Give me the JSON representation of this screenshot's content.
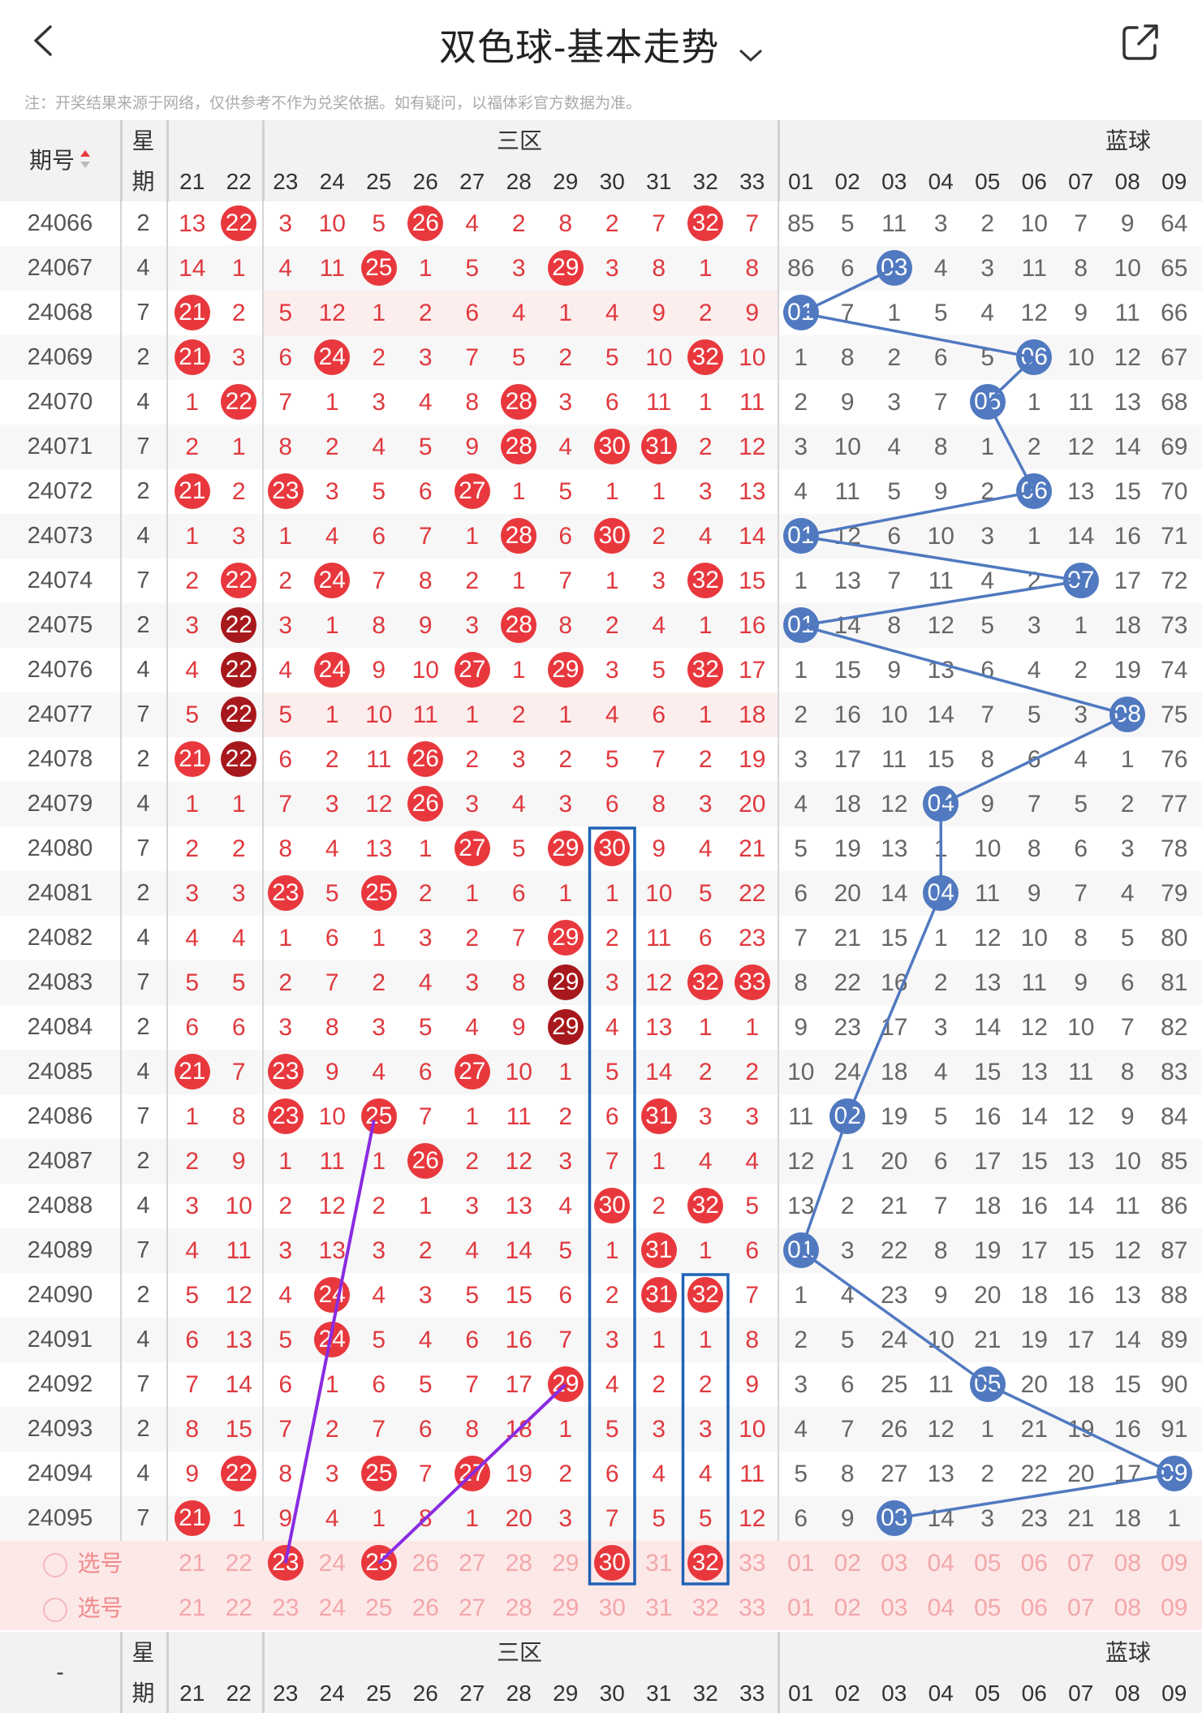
{
  "header": {
    "title": "双色球-基本走势",
    "note": "注：开奖结果来源于网络，仅供参考不作为兑奖依据。如有疑问，以福体彩官方数据为准。"
  },
  "columns": {
    "issue": "期号",
    "week_top": "星",
    "week_bottom": "期",
    "zone": "三区",
    "blue": "蓝球",
    "footer_issue": "-",
    "red_numbers": [
      "21",
      "22",
      "23",
      "24",
      "25",
      "26",
      "27",
      "28",
      "29",
      "30",
      "31",
      "32",
      "33"
    ],
    "blue_numbers": [
      "01",
      "02",
      "03",
      "04",
      "05",
      "06",
      "07",
      "08",
      "09"
    ]
  },
  "rows": [
    {
      "issue": "24066",
      "week": "2",
      "red": [
        "13",
        "22",
        "3",
        "10",
        "5",
        "26",
        "4",
        "2",
        "8",
        "2",
        "7",
        "32",
        "7"
      ],
      "blue": [
        "85",
        "5",
        "11",
        "3",
        "2",
        "10",
        "7",
        "9",
        "64"
      ]
    },
    {
      "issue": "24067",
      "week": "4",
      "red": [
        "14",
        "1",
        "4",
        "11",
        "25",
        "1",
        "5",
        "3",
        "29",
        "3",
        "8",
        "1",
        "8"
      ],
      "blue": [
        "86",
        "6",
        "03",
        "4",
        "3",
        "11",
        "8",
        "10",
        "65"
      ]
    },
    {
      "issue": "24068",
      "week": "7",
      "red": [
        "21",
        "2",
        "5",
        "12",
        "1",
        "2",
        "6",
        "4",
        "1",
        "4",
        "9",
        "2",
        "9"
      ],
      "blue": [
        "01",
        "7",
        "1",
        "5",
        "4",
        "12",
        "9",
        "11",
        "66"
      ]
    },
    {
      "issue": "24069",
      "week": "2",
      "red": [
        "21",
        "3",
        "6",
        "24",
        "2",
        "3",
        "7",
        "5",
        "2",
        "5",
        "10",
        "32",
        "10"
      ],
      "blue": [
        "1",
        "8",
        "2",
        "6",
        "5",
        "06",
        "10",
        "12",
        "67"
      ]
    },
    {
      "issue": "24070",
      "week": "4",
      "red": [
        "1",
        "22",
        "7",
        "1",
        "3",
        "4",
        "8",
        "28",
        "3",
        "6",
        "11",
        "1",
        "11"
      ],
      "blue": [
        "2",
        "9",
        "3",
        "7",
        "05",
        "1",
        "11",
        "13",
        "68"
      ]
    },
    {
      "issue": "24071",
      "week": "7",
      "red": [
        "2",
        "1",
        "8",
        "2",
        "4",
        "5",
        "9",
        "28",
        "4",
        "30",
        "31",
        "2",
        "12"
      ],
      "blue": [
        "3",
        "10",
        "4",
        "8",
        "1",
        "2",
        "12",
        "14",
        "69"
      ]
    },
    {
      "issue": "24072",
      "week": "2",
      "red": [
        "21",
        "2",
        "23",
        "3",
        "5",
        "6",
        "27",
        "1",
        "5",
        "1",
        "1",
        "3",
        "13"
      ],
      "blue": [
        "4",
        "11",
        "5",
        "9",
        "2",
        "06",
        "13",
        "15",
        "70"
      ]
    },
    {
      "issue": "24073",
      "week": "4",
      "red": [
        "1",
        "3",
        "1",
        "4",
        "6",
        "7",
        "1",
        "28",
        "6",
        "30",
        "2",
        "4",
        "14"
      ],
      "blue": [
        "01",
        "12",
        "6",
        "10",
        "3",
        "1",
        "14",
        "16",
        "71"
      ]
    },
    {
      "issue": "24074",
      "week": "7",
      "red": [
        "2",
        "22",
        "2",
        "24",
        "7",
        "8",
        "2",
        "1",
        "7",
        "1",
        "3",
        "32",
        "15"
      ],
      "blue": [
        "1",
        "13",
        "7",
        "11",
        "4",
        "2",
        "07",
        "17",
        "72"
      ]
    },
    {
      "issue": "24075",
      "week": "2",
      "red": [
        "3",
        "22",
        "3",
        "1",
        "8",
        "9",
        "3",
        "28",
        "8",
        "2",
        "4",
        "1",
        "16"
      ],
      "blue": [
        "01",
        "14",
        "8",
        "12",
        "5",
        "3",
        "1",
        "18",
        "73"
      ]
    },
    {
      "issue": "24076",
      "week": "4",
      "red": [
        "4",
        "22",
        "4",
        "24",
        "9",
        "10",
        "27",
        "1",
        "29",
        "3",
        "5",
        "32",
        "17"
      ],
      "blue": [
        "1",
        "15",
        "9",
        "13",
        "6",
        "4",
        "2",
        "19",
        "74"
      ]
    },
    {
      "issue": "24077",
      "week": "7",
      "red": [
        "5",
        "22",
        "5",
        "1",
        "10",
        "11",
        "1",
        "2",
        "1",
        "4",
        "6",
        "1",
        "18"
      ],
      "blue": [
        "2",
        "16",
        "10",
        "14",
        "7",
        "5",
        "3",
        "08",
        "75"
      ]
    },
    {
      "issue": "24078",
      "week": "2",
      "red": [
        "21",
        "22",
        "6",
        "2",
        "11",
        "26",
        "2",
        "3",
        "2",
        "5",
        "7",
        "2",
        "19"
      ],
      "blue": [
        "3",
        "17",
        "11",
        "15",
        "8",
        "6",
        "4",
        "1",
        "76"
      ]
    },
    {
      "issue": "24079",
      "week": "4",
      "red": [
        "1",
        "1",
        "7",
        "3",
        "12",
        "26",
        "3",
        "4",
        "3",
        "6",
        "8",
        "3",
        "20"
      ],
      "blue": [
        "4",
        "18",
        "12",
        "04",
        "9",
        "7",
        "5",
        "2",
        "77"
      ]
    },
    {
      "issue": "24080",
      "week": "7",
      "red": [
        "2",
        "2",
        "8",
        "4",
        "13",
        "1",
        "27",
        "5",
        "29",
        "30",
        "9",
        "4",
        "21"
      ],
      "blue": [
        "5",
        "19",
        "13",
        "1",
        "10",
        "8",
        "6",
        "3",
        "78"
      ]
    },
    {
      "issue": "24081",
      "week": "2",
      "red": [
        "3",
        "3",
        "23",
        "5",
        "25",
        "2",
        "1",
        "6",
        "1",
        "1",
        "10",
        "5",
        "22"
      ],
      "blue": [
        "6",
        "20",
        "14",
        "04",
        "11",
        "9",
        "7",
        "4",
        "79"
      ]
    },
    {
      "issue": "24082",
      "week": "4",
      "red": [
        "4",
        "4",
        "1",
        "6",
        "1",
        "3",
        "2",
        "7",
        "29",
        "2",
        "11",
        "6",
        "23"
      ],
      "blue": [
        "7",
        "21",
        "15",
        "1",
        "12",
        "10",
        "8",
        "5",
        "80"
      ]
    },
    {
      "issue": "24083",
      "week": "7",
      "red": [
        "5",
        "5",
        "2",
        "7",
        "2",
        "4",
        "3",
        "8",
        "29",
        "3",
        "12",
        "32",
        "33"
      ],
      "blue": [
        "8",
        "22",
        "16",
        "2",
        "13",
        "11",
        "9",
        "6",
        "81"
      ]
    },
    {
      "issue": "24084",
      "week": "2",
      "red": [
        "6",
        "6",
        "3",
        "8",
        "3",
        "5",
        "4",
        "9",
        "29",
        "4",
        "13",
        "1",
        "1"
      ],
      "blue": [
        "9",
        "23",
        "17",
        "3",
        "14",
        "12",
        "10",
        "7",
        "82"
      ]
    },
    {
      "issue": "24085",
      "week": "4",
      "red": [
        "21",
        "7",
        "23",
        "9",
        "4",
        "6",
        "27",
        "10",
        "1",
        "5",
        "14",
        "2",
        "2"
      ],
      "blue": [
        "10",
        "24",
        "18",
        "4",
        "15",
        "13",
        "11",
        "8",
        "83"
      ]
    },
    {
      "issue": "24086",
      "week": "7",
      "red": [
        "1",
        "8",
        "23",
        "10",
        "25",
        "7",
        "1",
        "11",
        "2",
        "6",
        "31",
        "3",
        "3"
      ],
      "blue": [
        "11",
        "02",
        "19",
        "5",
        "16",
        "14",
        "12",
        "9",
        "84"
      ]
    },
    {
      "issue": "24087",
      "week": "2",
      "red": [
        "2",
        "9",
        "1",
        "11",
        "1",
        "26",
        "2",
        "12",
        "3",
        "7",
        "1",
        "4",
        "4"
      ],
      "blue": [
        "12",
        "1",
        "20",
        "6",
        "17",
        "15",
        "13",
        "10",
        "85"
      ]
    },
    {
      "issue": "24088",
      "week": "4",
      "red": [
        "3",
        "10",
        "2",
        "12",
        "2",
        "1",
        "3",
        "13",
        "4",
        "30",
        "2",
        "32",
        "5"
      ],
      "blue": [
        "13",
        "2",
        "21",
        "7",
        "18",
        "16",
        "14",
        "11",
        "86"
      ]
    },
    {
      "issue": "24089",
      "week": "7",
      "red": [
        "4",
        "11",
        "3",
        "13",
        "3",
        "2",
        "4",
        "14",
        "5",
        "1",
        "31",
        "1",
        "6"
      ],
      "blue": [
        "01",
        "3",
        "22",
        "8",
        "19",
        "17",
        "15",
        "12",
        "87"
      ]
    },
    {
      "issue": "24090",
      "week": "2",
      "red": [
        "5",
        "12",
        "4",
        "24",
        "4",
        "3",
        "5",
        "15",
        "6",
        "2",
        "31",
        "32",
        "7"
      ],
      "blue": [
        "1",
        "4",
        "23",
        "9",
        "20",
        "18",
        "16",
        "13",
        "88"
      ]
    },
    {
      "issue": "24091",
      "week": "4",
      "red": [
        "6",
        "13",
        "5",
        "24",
        "5",
        "4",
        "6",
        "16",
        "7",
        "3",
        "1",
        "1",
        "8"
      ],
      "blue": [
        "2",
        "5",
        "24",
        "10",
        "21",
        "19",
        "17",
        "14",
        "89"
      ]
    },
    {
      "issue": "24092",
      "week": "7",
      "red": [
        "7",
        "14",
        "6",
        "1",
        "6",
        "5",
        "7",
        "17",
        "29",
        "4",
        "2",
        "2",
        "9"
      ],
      "blue": [
        "3",
        "6",
        "25",
        "11",
        "05",
        "20",
        "18",
        "15",
        "90"
      ]
    },
    {
      "issue": "24093",
      "week": "2",
      "red": [
        "8",
        "15",
        "7",
        "2",
        "7",
        "6",
        "8",
        "18",
        "1",
        "5",
        "3",
        "3",
        "10"
      ],
      "blue": [
        "4",
        "7",
        "26",
        "12",
        "1",
        "21",
        "19",
        "16",
        "91"
      ]
    },
    {
      "issue": "24094",
      "week": "4",
      "red": [
        "9",
        "22",
        "8",
        "3",
        "25",
        "7",
        "27",
        "19",
        "2",
        "6",
        "4",
        "4",
        "11"
      ],
      "blue": [
        "5",
        "8",
        "27",
        "13",
        "2",
        "22",
        "20",
        "17",
        "09"
      ]
    },
    {
      "issue": "24095",
      "week": "7",
      "red": [
        "21",
        "1",
        "9",
        "4",
        "1",
        "8",
        "1",
        "20",
        "3",
        "7",
        "5",
        "5",
        "12"
      ],
      "blue": [
        "6",
        "9",
        "03",
        "14",
        "3",
        "23",
        "21",
        "18",
        "1"
      ]
    }
  ],
  "selection_rows": [
    {
      "label": "选号",
      "red": [
        "21",
        "22",
        "23",
        "24",
        "25",
        "26",
        "27",
        "28",
        "29",
        "30",
        "31",
        "32",
        "33"
      ],
      "blue": [
        "01",
        "02",
        "03",
        "04",
        "05",
        "06",
        "07",
        "08",
        "09"
      ]
    },
    {
      "label": "选号",
      "red": [
        "21",
        "22",
        "23",
        "24",
        "25",
        "26",
        "27",
        "28",
        "29",
        "30",
        "31",
        "32",
        "33"
      ],
      "blue": [
        "01",
        "02",
        "03",
        "04",
        "05",
        "06",
        "07",
        "08",
        "09"
      ]
    }
  ],
  "colors": {
    "red_ball": "#e8383d",
    "repeat_ball": "#a7181c",
    "blue_ball": "#5079c0",
    "red_text": "#e0393e",
    "blue_line": "#5079c0",
    "purple_line": "#8a2be2",
    "box_line": "#1f62b5",
    "selection_bg": "#fde8e8"
  }
}
